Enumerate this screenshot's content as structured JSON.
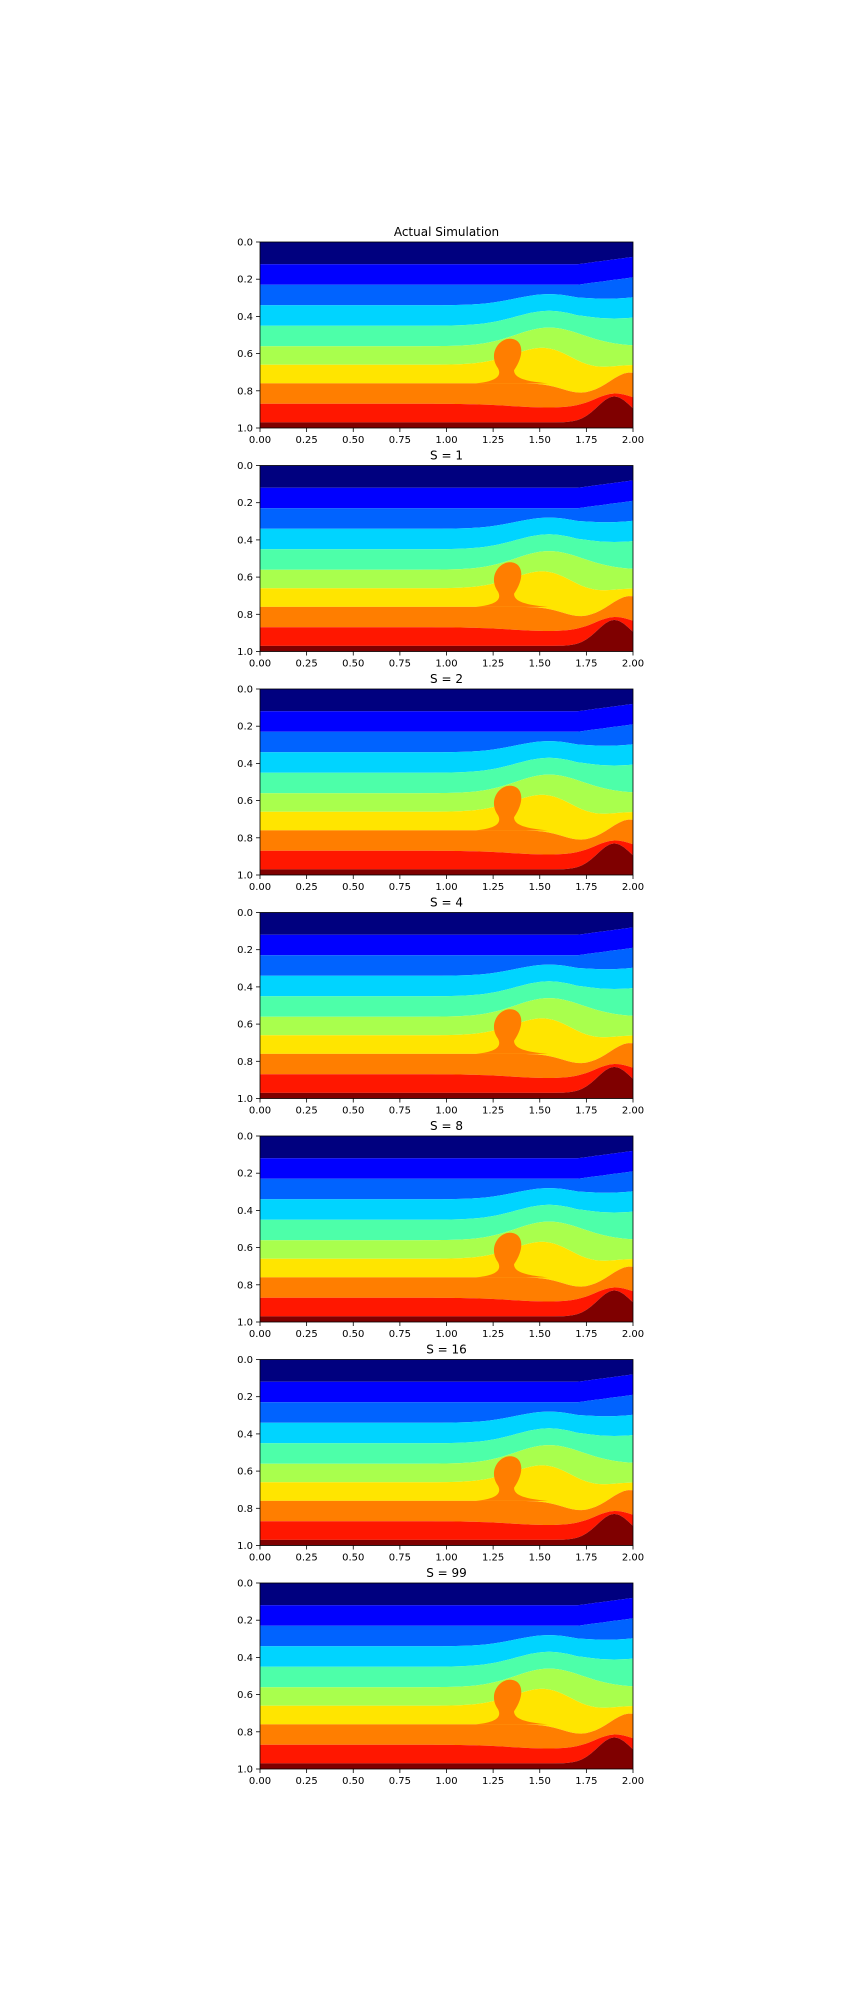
{
  "figure": {
    "colormap": "jet",
    "band_colors": [
      "#00007f",
      "#0000ff",
      "#0063ff",
      "#00d4ff",
      "#4dffa9",
      "#a9ff4d",
      "#ffe500",
      "#ff7e00",
      "#ff1700",
      "#7f0000"
    ]
  },
  "chart_data": [
    {
      "type": "heatmap",
      "subtype": "filled-contour",
      "title": "Actual Simulation",
      "xlabel": "",
      "ylabel": "",
      "xlim": [
        0,
        2
      ],
      "ylim": [
        1,
        0
      ],
      "xticks": [
        "0.00",
        "0.25",
        "0.50",
        "0.75",
        "1.00",
        "1.25",
        "1.50",
        "1.75",
        "2.00"
      ],
      "yticks": [
        "0.0",
        "0.2",
        "0.4",
        "0.6",
        "0.8",
        "1.0"
      ],
      "level_boundaries_at_left_edge": [
        0.12,
        0.23,
        0.34,
        0.45,
        0.56,
        0.66,
        0.76,
        0.87,
        0.97
      ],
      "features": {
        "plume_x": 1.33,
        "plume_top_y": 0.52,
        "bottom_dome_x": 1.9,
        "bottom_dome_top_y": 0.83
      },
      "grid": false
    },
    {
      "type": "heatmap",
      "subtype": "filled-contour",
      "title": "S = 1",
      "xlabel": "",
      "ylabel": "",
      "xlim": [
        0,
        2
      ],
      "ylim": [
        1,
        0
      ],
      "xticks": [
        "0.00",
        "0.25",
        "0.50",
        "0.75",
        "1.00",
        "1.25",
        "1.50",
        "1.75",
        "2.00"
      ],
      "yticks": [
        "0.0",
        "0.2",
        "0.4",
        "0.6",
        "0.8",
        "1.0"
      ],
      "level_boundaries_at_left_edge": [
        0.12,
        0.23,
        0.34,
        0.45,
        0.56,
        0.66,
        0.76,
        0.87,
        0.97
      ],
      "features": {
        "plume_x": 1.33,
        "plume_top_y": 0.52,
        "bottom_dome_x": 1.9,
        "bottom_dome_top_y": 0.83
      },
      "grid": false
    },
    {
      "type": "heatmap",
      "subtype": "filled-contour",
      "title": "S = 2",
      "xlabel": "",
      "ylabel": "",
      "xlim": [
        0,
        2
      ],
      "ylim": [
        1,
        0
      ],
      "xticks": [
        "0.00",
        "0.25",
        "0.50",
        "0.75",
        "1.00",
        "1.25",
        "1.50",
        "1.75",
        "2.00"
      ],
      "yticks": [
        "0.0",
        "0.2",
        "0.4",
        "0.6",
        "0.8",
        "1.0"
      ],
      "level_boundaries_at_left_edge": [
        0.12,
        0.23,
        0.34,
        0.45,
        0.56,
        0.66,
        0.76,
        0.87,
        0.97
      ],
      "features": {
        "plume_x": 1.33,
        "plume_top_y": 0.52,
        "bottom_dome_x": 1.9,
        "bottom_dome_top_y": 0.83
      },
      "grid": false
    },
    {
      "type": "heatmap",
      "subtype": "filled-contour",
      "title": "S = 4",
      "xlabel": "",
      "ylabel": "",
      "xlim": [
        0,
        2
      ],
      "ylim": [
        1,
        0
      ],
      "xticks": [
        "0.00",
        "0.25",
        "0.50",
        "0.75",
        "1.00",
        "1.25",
        "1.50",
        "1.75",
        "2.00"
      ],
      "yticks": [
        "0.0",
        "0.2",
        "0.4",
        "0.6",
        "0.8",
        "1.0"
      ],
      "level_boundaries_at_left_edge": [
        0.12,
        0.23,
        0.34,
        0.45,
        0.56,
        0.66,
        0.76,
        0.87,
        0.97
      ],
      "features": {
        "plume_x": 1.33,
        "plume_top_y": 0.52,
        "bottom_dome_x": 1.9,
        "bottom_dome_top_y": 0.83
      },
      "grid": false
    },
    {
      "type": "heatmap",
      "subtype": "filled-contour",
      "title": "S = 8",
      "xlabel": "",
      "ylabel": "",
      "xlim": [
        0,
        2
      ],
      "ylim": [
        1,
        0
      ],
      "xticks": [
        "0.00",
        "0.25",
        "0.50",
        "0.75",
        "1.00",
        "1.25",
        "1.50",
        "1.75",
        "2.00"
      ],
      "yticks": [
        "0.0",
        "0.2",
        "0.4",
        "0.6",
        "0.8",
        "1.0"
      ],
      "level_boundaries_at_left_edge": [
        0.12,
        0.23,
        0.34,
        0.45,
        0.56,
        0.66,
        0.76,
        0.87,
        0.97
      ],
      "features": {
        "plume_x": 1.33,
        "plume_top_y": 0.52,
        "bottom_dome_x": 1.9,
        "bottom_dome_top_y": 0.83
      },
      "grid": false
    },
    {
      "type": "heatmap",
      "subtype": "filled-contour",
      "title": "S = 16",
      "xlabel": "",
      "ylabel": "",
      "xlim": [
        0,
        2
      ],
      "ylim": [
        1,
        0
      ],
      "xticks": [
        "0.00",
        "0.25",
        "0.50",
        "0.75",
        "1.00",
        "1.25",
        "1.50",
        "1.75",
        "2.00"
      ],
      "yticks": [
        "0.0",
        "0.2",
        "0.4",
        "0.6",
        "0.8",
        "1.0"
      ],
      "level_boundaries_at_left_edge": [
        0.12,
        0.23,
        0.34,
        0.45,
        0.56,
        0.66,
        0.76,
        0.87,
        0.97
      ],
      "features": {
        "plume_x": 1.33,
        "plume_top_y": 0.52,
        "bottom_dome_x": 1.9,
        "bottom_dome_top_y": 0.83
      },
      "grid": false
    },
    {
      "type": "heatmap",
      "subtype": "filled-contour",
      "title": "S = 99",
      "xlabel": "",
      "ylabel": "",
      "xlim": [
        0,
        2
      ],
      "ylim": [
        1,
        0
      ],
      "xticks": [
        "0.00",
        "0.25",
        "0.50",
        "0.75",
        "1.00",
        "1.25",
        "1.50",
        "1.75",
        "2.00"
      ],
      "yticks": [
        "0.0",
        "0.2",
        "0.4",
        "0.6",
        "0.8",
        "1.0"
      ],
      "level_boundaries_at_left_edge": [
        0.12,
        0.23,
        0.34,
        0.45,
        0.56,
        0.66,
        0.76,
        0.87,
        0.97
      ],
      "features": {
        "plume_x": 1.33,
        "plume_top_y": 0.52,
        "bottom_dome_x": 1.9,
        "bottom_dome_top_y": 0.83
      },
      "grid": false
    }
  ]
}
